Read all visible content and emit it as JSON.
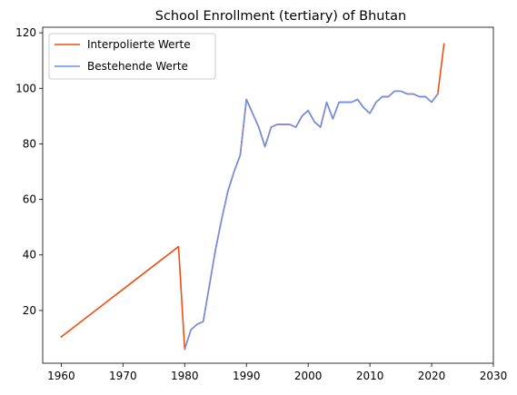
{
  "chart_data": {
    "type": "line",
    "title": "School Enrollment (tertiary) of Bhutan",
    "xlabel": "",
    "ylabel": "",
    "xlim": [
      1957,
      2030
    ],
    "ylim": [
      1,
      122
    ],
    "xticks": [
      1960,
      1970,
      1980,
      1990,
      2000,
      2010,
      2020,
      2030
    ],
    "yticks": [
      20,
      40,
      60,
      80,
      100,
      120
    ],
    "grid": false,
    "legend_position": "top-left",
    "series": [
      {
        "name": "Interpolierte Werte",
        "color": "#f04e13",
        "x": [
          1960,
          1979,
          1980,
          1981,
          1982,
          1983,
          1984,
          1985,
          1986,
          1987,
          1988,
          1989,
          1990,
          1991,
          1992,
          1993,
          1994,
          1995,
          1996,
          1997,
          1998,
          1999,
          2000,
          2001,
          2002,
          2003,
          2004,
          2005,
          2006,
          2007,
          2008,
          2009,
          2010,
          2011,
          2012,
          2013,
          2014,
          2015,
          2016,
          2017,
          2018,
          2019,
          2020,
          2021,
          2022
        ],
        "y": [
          10.5,
          43,
          6,
          13,
          15,
          16,
          29,
          42,
          53,
          63,
          70,
          76,
          96,
          91,
          86,
          79,
          86,
          87,
          87,
          87,
          86,
          90,
          92,
          88,
          86,
          95,
          89,
          95,
          95,
          95,
          96,
          93,
          91,
          95,
          97,
          97,
          99,
          99,
          98,
          98,
          97,
          97,
          95,
          98,
          116
        ]
      },
      {
        "name": "Bestehende Werte",
        "color": "#6f8fe8",
        "x": [
          1980,
          1981,
          1982,
          1983,
          1984,
          1985,
          1986,
          1987,
          1988,
          1989,
          1990,
          1991,
          1992,
          1993,
          1994,
          1995,
          1996,
          1997,
          1998,
          1999,
          2000,
          2001,
          2002,
          2003,
          2004,
          2005,
          2006,
          2007,
          2008,
          2009,
          2010,
          2011,
          2012,
          2013,
          2014,
          2015,
          2016,
          2017,
          2018,
          2019,
          2020,
          2021
        ],
        "y": [
          6,
          13,
          15,
          16,
          29,
          42,
          53,
          63,
          70,
          76,
          96,
          91,
          86,
          79,
          86,
          87,
          87,
          87,
          86,
          90,
          92,
          88,
          86,
          95,
          89,
          95,
          95,
          95,
          96,
          93,
          91,
          95,
          97,
          97,
          99,
          99,
          98,
          98,
          97,
          97,
          95,
          98
        ]
      }
    ]
  }
}
